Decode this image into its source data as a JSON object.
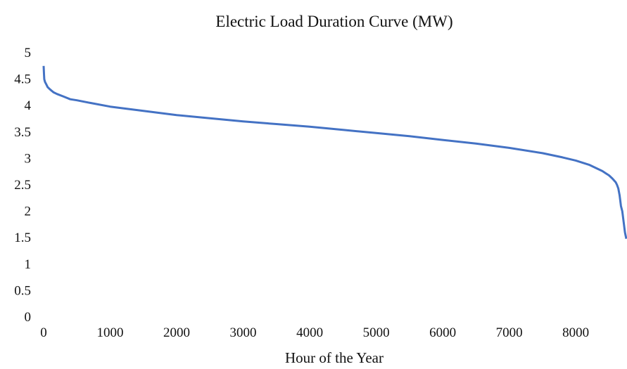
{
  "chart_data": {
    "type": "line",
    "title": "Electric Load Duration Curve (MW)",
    "xlabel": "Hour of the Year",
    "ylabel": "",
    "xlim": [
      0,
      8760
    ],
    "ylim": [
      0,
      5
    ],
    "x_ticks": [
      0,
      1000,
      2000,
      3000,
      4000,
      5000,
      6000,
      7000,
      8000
    ],
    "x_tick_labels": [
      "0",
      "1000",
      "2000",
      "3000",
      "4000",
      "5000",
      "6000",
      "7000",
      "8000"
    ],
    "y_ticks": [
      0,
      0.5,
      1,
      1.5,
      2,
      2.5,
      3,
      3.5,
      4,
      4.5,
      5
    ],
    "y_tick_labels": [
      "0",
      "0.5",
      "1",
      "1.5",
      "2",
      "2.5",
      "3",
      "3.5",
      "4",
      "4.5",
      "5"
    ],
    "grid": false,
    "series": [
      {
        "color": "#4472C4",
        "x": [
          0,
          5,
          10,
          20,
          40,
          60,
          100,
          150,
          200,
          300,
          400,
          500,
          700,
          1000,
          1500,
          2000,
          2500,
          3000,
          3500,
          4000,
          4500,
          5000,
          5500,
          6000,
          6500,
          7000,
          7500,
          7800,
          8000,
          8200,
          8300,
          8400,
          8450,
          8500,
          8550,
          8600,
          8620,
          8640,
          8660,
          8680,
          8700,
          8720,
          8740,
          8760
        ],
        "values": [
          4.75,
          4.6,
          4.5,
          4.45,
          4.4,
          4.35,
          4.3,
          4.25,
          4.22,
          4.17,
          4.12,
          4.1,
          4.05,
          3.98,
          3.9,
          3.82,
          3.76,
          3.7,
          3.65,
          3.6,
          3.54,
          3.48,
          3.42,
          3.35,
          3.28,
          3.2,
          3.1,
          3.02,
          2.96,
          2.88,
          2.82,
          2.76,
          2.72,
          2.68,
          2.62,
          2.55,
          2.5,
          2.43,
          2.3,
          2.1,
          2.0,
          1.8,
          1.6,
          1.48
        ]
      }
    ]
  }
}
